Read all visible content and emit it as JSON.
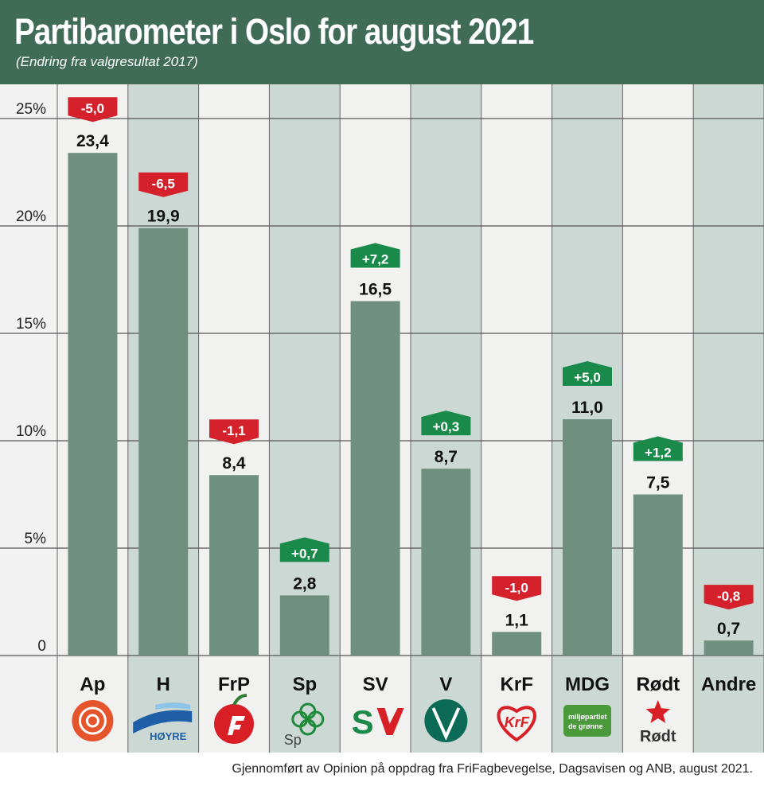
{
  "header": {
    "title": "Partibarometer i Oslo for august 2021",
    "subtitle": "(Endring fra valgresultat 2017)"
  },
  "footer": {
    "source": "Gjennomført av Opinion på oppdrag fra FriFagbevegelse, Dagsavisen og ANB, august 2021."
  },
  "colors": {
    "header_bg": "#3f6b57",
    "bar": "#6f9080",
    "positive": "#1a8a4a",
    "negative": "#d4212b"
  },
  "logos": [
    {
      "party": "Ap",
      "icon": "rose-icon",
      "text": ""
    },
    {
      "party": "H",
      "icon": "hoyre-wave-icon",
      "text": "HØYRE"
    },
    {
      "party": "FrP",
      "icon": "apple-icon",
      "text": ""
    },
    {
      "party": "Sp",
      "icon": "clover-icon",
      "text": "Sp"
    },
    {
      "party": "SV",
      "icon": "sv-logo-icon",
      "text": "SV"
    },
    {
      "party": "V",
      "icon": "venstre-v-icon",
      "text": ""
    },
    {
      "party": "KrF",
      "icon": "heart-icon",
      "text": "KrF"
    },
    {
      "party": "MDG",
      "icon": "mdg-leaf-icon",
      "text": "miljøpartiet de grønne"
    },
    {
      "party": "Rødt",
      "icon": "red-star-icon",
      "text": "Rødt"
    },
    {
      "party": "Andre",
      "icon": "",
      "text": ""
    }
  ],
  "chart_data": {
    "type": "bar",
    "title": "Partibarometer i Oslo for august 2021",
    "subtitle": "(Endring fra valgresultat 2017)",
    "categories": [
      "Ap",
      "H",
      "FrP",
      "Sp",
      "SV",
      "V",
      "KrF",
      "MDG",
      "Rødt",
      "Andre"
    ],
    "values": [
      23.4,
      19.9,
      8.4,
      2.8,
      16.5,
      8.7,
      1.1,
      11.0,
      7.5,
      0.7
    ],
    "value_labels": [
      "23,4",
      "19,9",
      "8,4",
      "2,8",
      "16,5",
      "8,7",
      "1,1",
      "11,0",
      "7,5",
      "0,7"
    ],
    "changes": [
      -5.0,
      -6.5,
      -1.1,
      0.7,
      7.2,
      0.3,
      -1.0,
      5.0,
      1.2,
      -0.8
    ],
    "change_labels": [
      "-5,0",
      "-6,5",
      "-1,1",
      "+0,7",
      "+7,2",
      "+0,3",
      "-1,0",
      "+5,0",
      "+1,2",
      "-0,8"
    ],
    "ylim": [
      0,
      25
    ],
    "yticks": [
      0,
      5,
      10,
      15,
      20,
      25
    ],
    "ytick_labels": [
      "0",
      "5%",
      "10%",
      "15%",
      "20%",
      "25%"
    ],
    "grid": true,
    "xlabel": "",
    "ylabel": ""
  }
}
